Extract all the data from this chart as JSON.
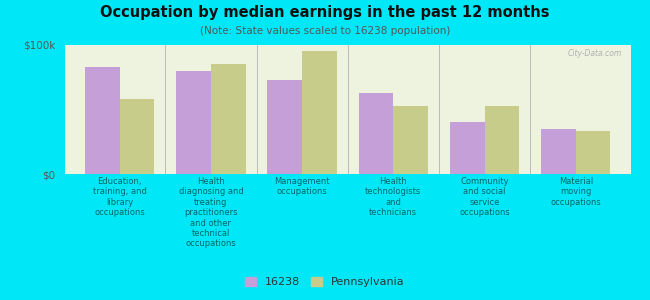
{
  "title": "Occupation by median earnings in the past 12 months",
  "subtitle": "(Note: State values scaled to 16238 population)",
  "categories": [
    "Education,\ntraining, and\nlibrary\noccupations",
    "Health\ndiagnosing and\ntreating\npractitioners\nand other\ntechnical\noccupations",
    "Management\noccupations",
    "Health\ntechnologists\nand\ntechnicians",
    "Community\nand social\nservice\noccupations",
    "Material\nmoving\noccupations"
  ],
  "values_16238": [
    83000,
    80000,
    73000,
    63000,
    40000,
    35000
  ],
  "values_pa": [
    58000,
    85000,
    95000,
    53000,
    53000,
    33000
  ],
  "color_16238": "#c49fd8",
  "color_pa": "#c8cc8a",
  "ylim": [
    0,
    100000
  ],
  "background_outer": "#00e8f8",
  "background_inner": "#eef3e0",
  "legend_16238": "16238",
  "legend_pa": "Pennsylvania",
  "watermark": "City-Data.com",
  "bar_width": 0.38
}
